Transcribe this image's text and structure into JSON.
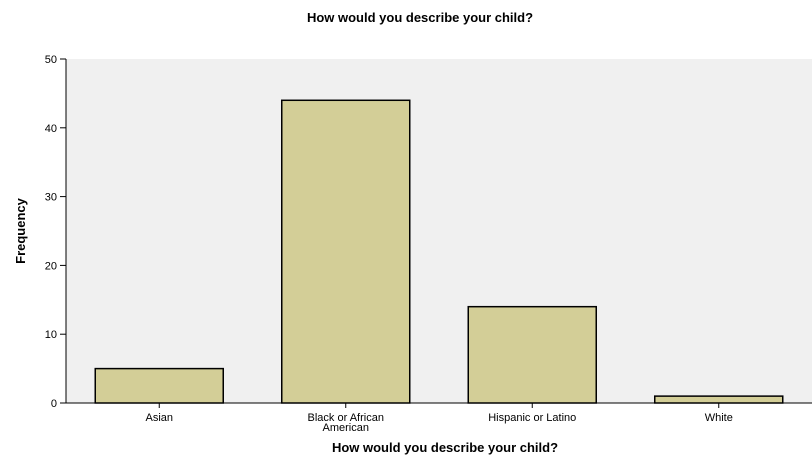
{
  "chart_data": {
    "type": "bar",
    "title": "How would you describe your child?",
    "xlabel": "How would you describe your child?",
    "ylabel": "Frequency",
    "categories": [
      "Asian",
      "Black or African American",
      "Hispanic or Latino",
      "White"
    ],
    "category_lines": [
      [
        "Asian"
      ],
      [
        "Black or African",
        "American"
      ],
      [
        "Hispanic or Latino"
      ],
      [
        "White"
      ]
    ],
    "values": [
      5,
      44,
      14,
      1
    ],
    "ylim": [
      0,
      50
    ],
    "yticks": [
      "0",
      "10",
      "20",
      "30",
      "40",
      "50"
    ],
    "grid": false,
    "legend": "none",
    "colors": {
      "bar_fill": "#d3ce97",
      "bar_stroke": "#000000",
      "plot_background": "#f0f0f0",
      "axis": "#000000"
    }
  }
}
